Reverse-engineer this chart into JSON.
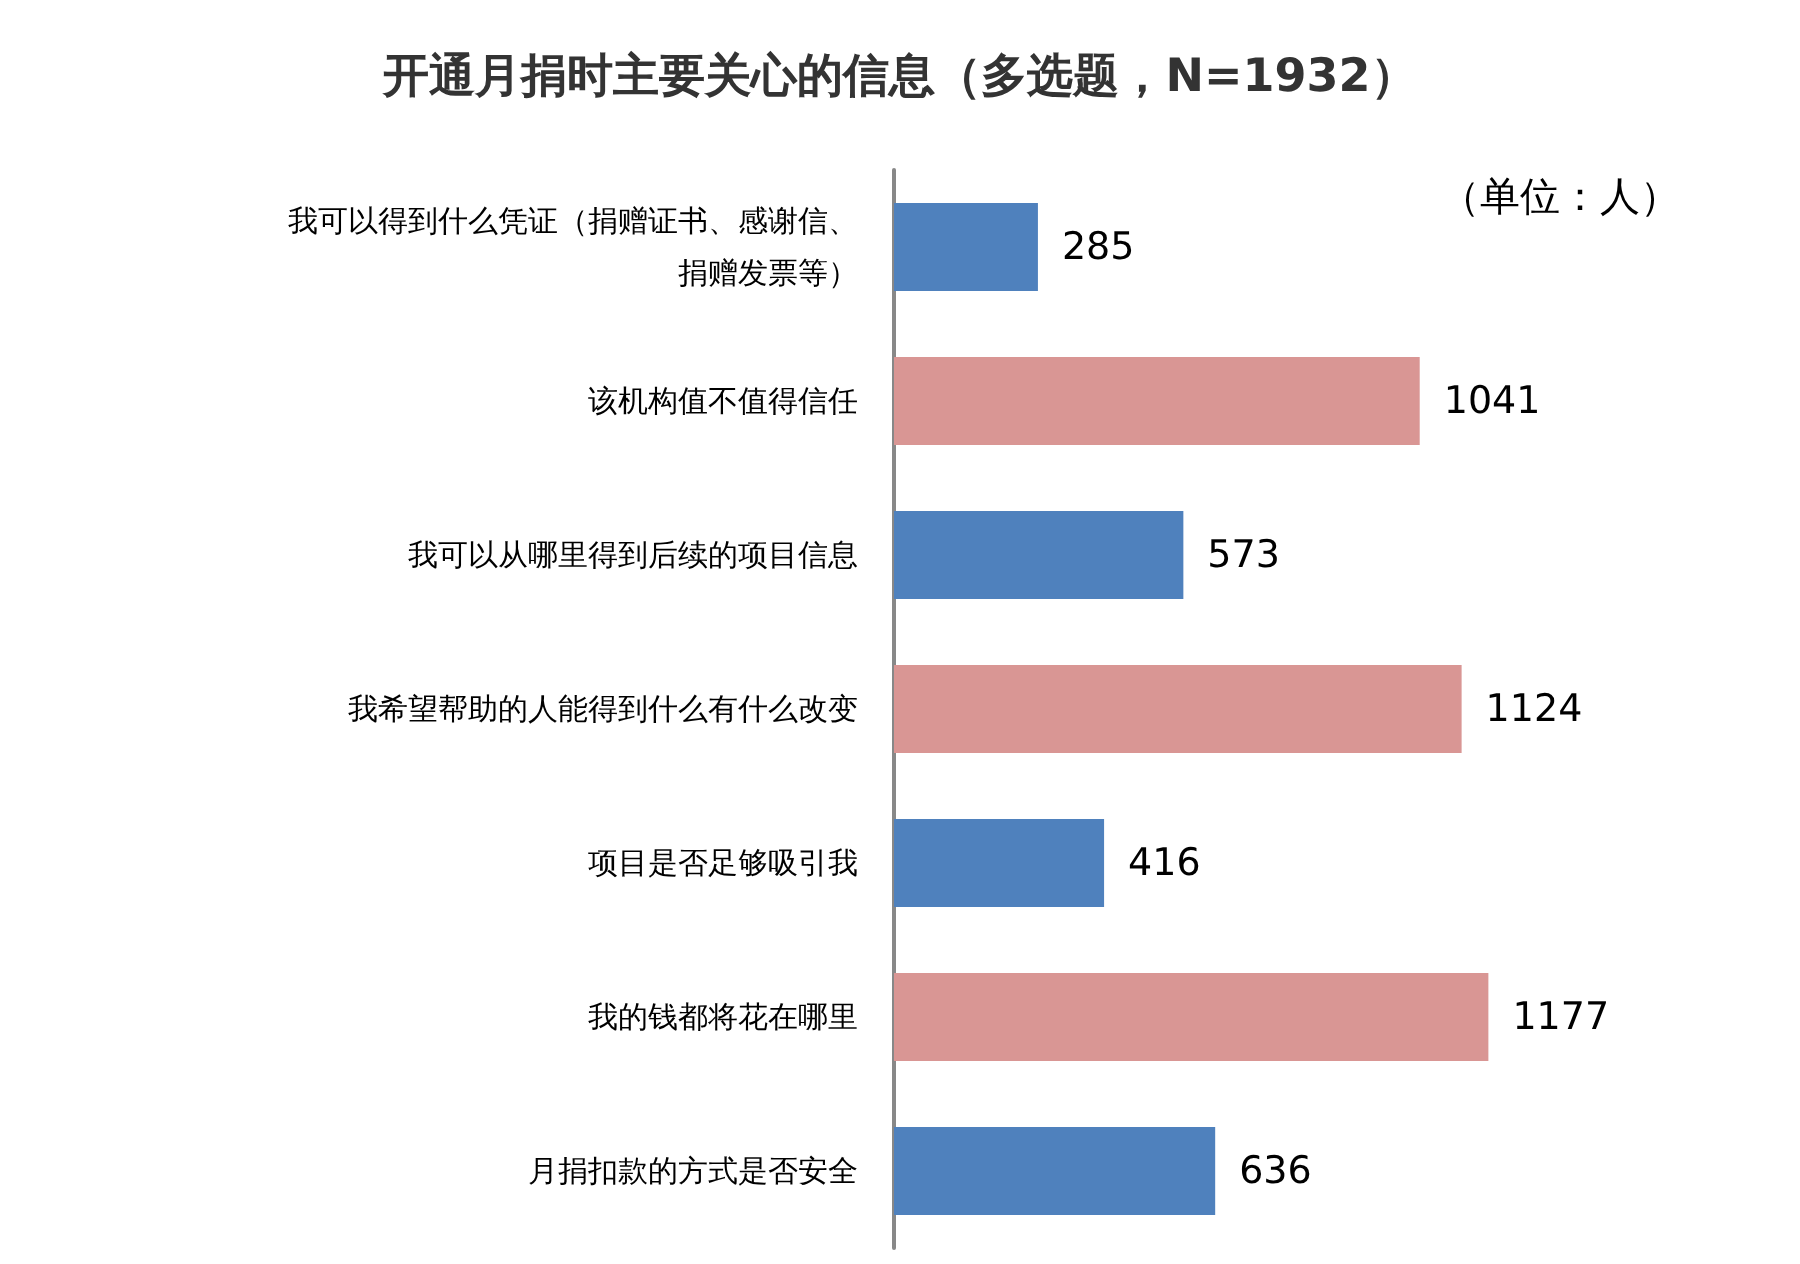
{
  "chart_data": {
    "type": "bar",
    "orientation": "horizontal",
    "title": "开通月捐时主要关心的信息（多选题，N=1932）",
    "categories": [
      "我可以得到什么凭证（捐赠证书、感谢信、捐赠发票等）",
      "该机构值不值得信任",
      "我可以从哪里得到后续的项目信息",
      "我希望帮助的人能得到什么有什么改变",
      "项目是否足够吸引我",
      "我的钱都将花在哪里",
      "月捐扣款的方式是否安全"
    ],
    "values": [
      285,
      1041,
      573,
      1124,
      416,
      1177,
      636
    ],
    "colors": [
      "#4f81bd",
      "#d99694",
      "#4f81bd",
      "#d99694",
      "#4f81bd",
      "#d99694",
      "#4f81bd"
    ],
    "data_labels": true,
    "annotations": [
      "（单位：人）"
    ]
  }
}
